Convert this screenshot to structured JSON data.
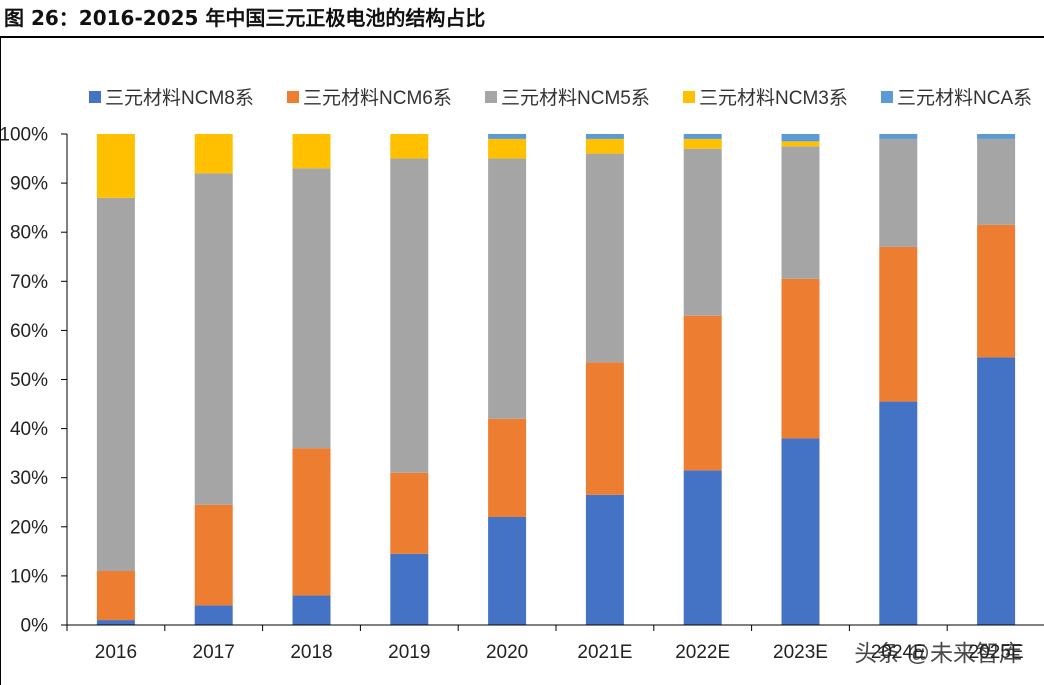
{
  "figure": {
    "title": "图 26：2016-2025 年中国三元正极电池的结构占比"
  },
  "watermark": "头条 @未来智库",
  "chart_data": {
    "type": "bar",
    "stacked": true,
    "title": "",
    "xlabel": "",
    "ylabel": "",
    "ylim": [
      0,
      100
    ],
    "y_ticks": [
      0,
      10,
      20,
      30,
      40,
      50,
      60,
      70,
      80,
      90,
      100
    ],
    "y_tick_suffix": "%",
    "grid": false,
    "legend_position": "top",
    "categories": [
      "2016",
      "2017",
      "2018",
      "2019",
      "2020",
      "2021E",
      "2022E",
      "2023E",
      "2024E",
      "2025E"
    ],
    "series": [
      {
        "name": "三元材料NCM8系",
        "color": "#4472C4",
        "values": [
          1,
          4,
          6,
          14.5,
          22,
          26.5,
          31.5,
          38,
          45.5,
          54.5
        ]
      },
      {
        "name": "三元材料NCM6系",
        "color": "#ED7D31",
        "values": [
          10,
          20.5,
          30,
          16.5,
          20,
          27,
          31.5,
          32.5,
          31.5,
          27
        ]
      },
      {
        "name": "三元材料NCM5系",
        "color": "#A5A5A5",
        "values": [
          76,
          67.5,
          57,
          64,
          53,
          42.5,
          34,
          27,
          22,
          17.5
        ]
      },
      {
        "name": "三元材料NCM3系",
        "color": "#FFC000",
        "values": [
          13,
          8,
          7,
          5,
          4,
          3,
          2,
          1,
          0,
          0
        ]
      },
      {
        "name": "三元材料NCA系",
        "color": "#5B9BD5",
        "values": [
          0,
          0,
          0,
          0,
          1,
          1,
          1,
          1.5,
          1,
          1
        ]
      }
    ]
  }
}
